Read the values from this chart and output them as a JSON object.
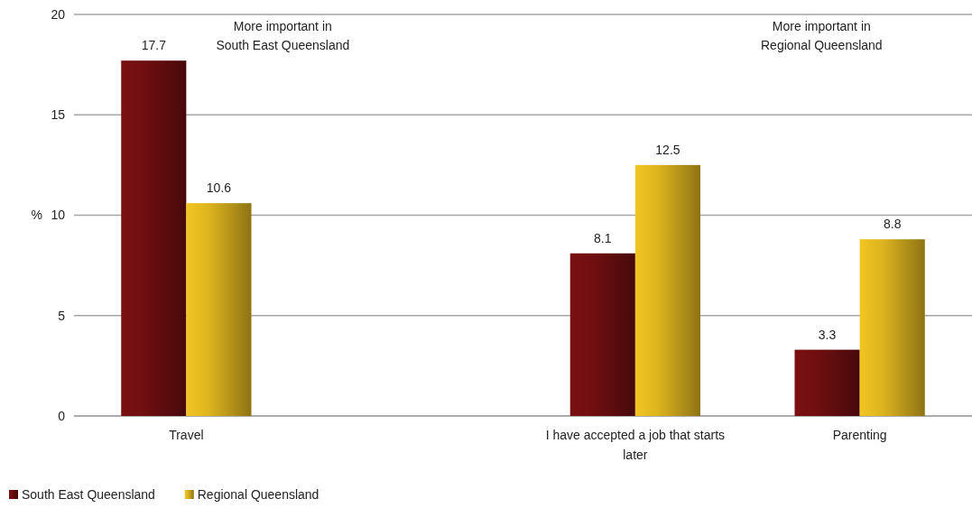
{
  "chart_data": {
    "type": "bar",
    "categories": [
      "Travel",
      null,
      "I have accepted a job that starts later",
      "Parenting"
    ],
    "series": [
      {
        "name": "South East Queensland",
        "color": "#7a1012",
        "values": [
          17.7,
          null,
          8.1,
          3.3
        ]
      },
      {
        "name": "Regional Queensland",
        "color": "#f2c522",
        "values": [
          10.6,
          null,
          12.5,
          8.8
        ]
      }
    ],
    "ylabel": "%",
    "ylim": [
      0,
      20
    ],
    "yticks": [
      0,
      5,
      10,
      15,
      20
    ],
    "grid": "y",
    "data_labels": true,
    "legend": "bottom left",
    "annotations": [
      "More important in\nSouth East Queensland",
      "More important in\nRegional Queensland"
    ]
  }
}
